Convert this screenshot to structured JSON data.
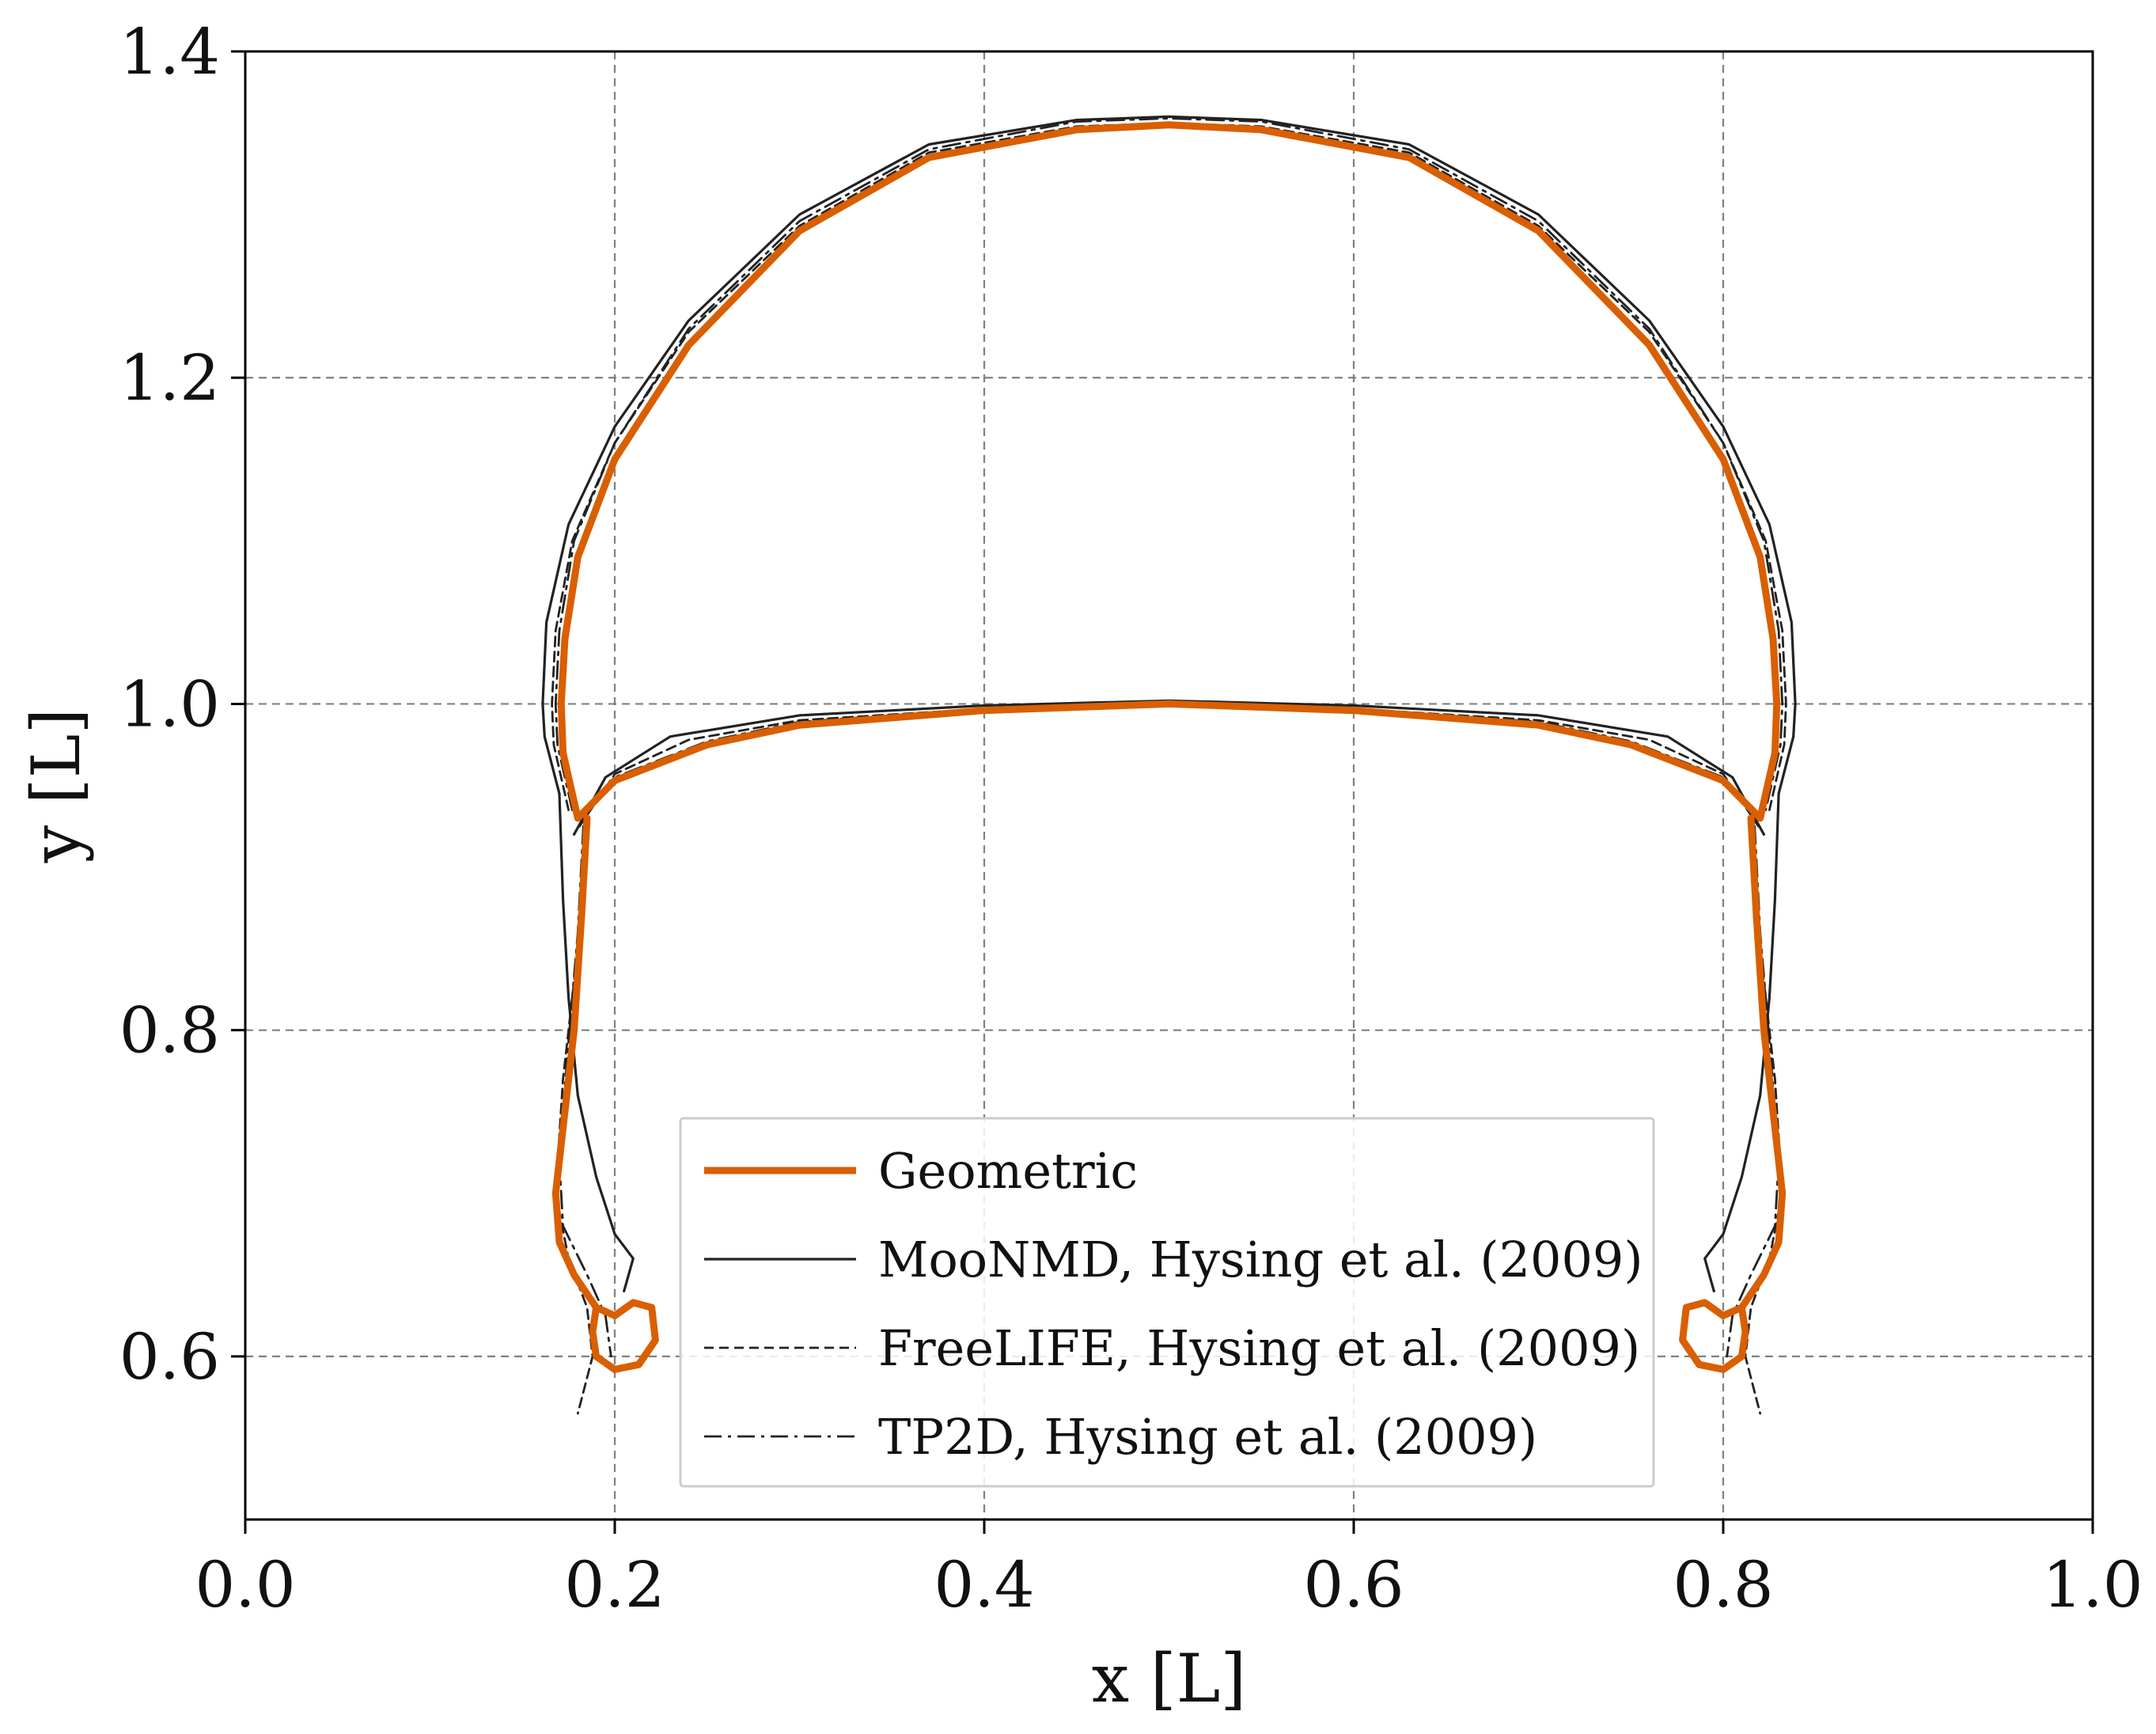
{
  "chart_data": {
    "type": "line",
    "title": "",
    "xlabel": "x [L]",
    "ylabel": "y [L]",
    "xlim": [
      0.0,
      1.0
    ],
    "ylim": [
      0.5,
      1.4
    ],
    "xticks": [
      0.0,
      0.2,
      0.4,
      0.6,
      0.8,
      1.0
    ],
    "xtick_labels": [
      "0.0",
      "0.2",
      "0.4",
      "0.6",
      "0.8",
      "1.0"
    ],
    "yticks": [
      0.6,
      0.8,
      1.0,
      1.2,
      1.4
    ],
    "ytick_labels": [
      "0.6",
      "0.8",
      "1.0",
      "1.2",
      "1.4"
    ],
    "grid": true,
    "legend_position": "lower-center",
    "series": [
      {
        "name": "Geometric",
        "color": "#d95f02",
        "style": "solid-thick",
        "outer": [
          [
            0.18,
            0.93
          ],
          [
            0.172,
            0.97
          ],
          [
            0.171,
            1.0
          ],
          [
            0.173,
            1.04
          ],
          [
            0.18,
            1.09
          ],
          [
            0.2,
            1.15
          ],
          [
            0.24,
            1.22
          ],
          [
            0.3,
            1.29
          ],
          [
            0.37,
            1.335
          ],
          [
            0.45,
            1.352
          ],
          [
            0.5,
            1.355
          ],
          [
            0.55,
            1.352
          ],
          [
            0.63,
            1.335
          ],
          [
            0.7,
            1.29
          ],
          [
            0.76,
            1.22
          ],
          [
            0.8,
            1.15
          ],
          [
            0.82,
            1.09
          ],
          [
            0.827,
            1.04
          ],
          [
            0.829,
            1.0
          ],
          [
            0.828,
            0.97
          ],
          [
            0.82,
            0.93
          ]
        ],
        "inner": [
          [
            0.18,
            0.93
          ],
          [
            0.2,
            0.953
          ],
          [
            0.25,
            0.975
          ],
          [
            0.3,
            0.987
          ],
          [
            0.4,
            0.996
          ],
          [
            0.5,
            1.0
          ],
          [
            0.6,
            0.996
          ],
          [
            0.7,
            0.987
          ],
          [
            0.75,
            0.975
          ],
          [
            0.8,
            0.953
          ],
          [
            0.82,
            0.93
          ]
        ],
        "left_tail": [
          [
            0.185,
            0.93
          ],
          [
            0.182,
            0.87
          ],
          [
            0.178,
            0.8
          ],
          [
            0.172,
            0.74
          ],
          [
            0.168,
            0.7
          ],
          [
            0.17,
            0.67
          ],
          [
            0.178,
            0.65
          ],
          [
            0.19,
            0.63
          ],
          [
            0.2,
            0.625
          ],
          [
            0.21,
            0.633
          ],
          [
            0.22,
            0.63
          ],
          [
            0.222,
            0.61
          ],
          [
            0.213,
            0.595
          ],
          [
            0.2,
            0.592
          ],
          [
            0.19,
            0.6
          ],
          [
            0.188,
            0.615
          ],
          [
            0.19,
            0.63
          ]
        ],
        "right_tail": [
          [
            0.815,
            0.93
          ],
          [
            0.818,
            0.87
          ],
          [
            0.822,
            0.8
          ],
          [
            0.828,
            0.74
          ],
          [
            0.832,
            0.7
          ],
          [
            0.83,
            0.67
          ],
          [
            0.822,
            0.65
          ],
          [
            0.81,
            0.63
          ],
          [
            0.8,
            0.625
          ],
          [
            0.79,
            0.633
          ],
          [
            0.78,
            0.63
          ],
          [
            0.778,
            0.61
          ],
          [
            0.787,
            0.595
          ],
          [
            0.8,
            0.592
          ],
          [
            0.81,
            0.6
          ],
          [
            0.812,
            0.615
          ],
          [
            0.81,
            0.63
          ]
        ]
      },
      {
        "name": "MooNMD, Hysing et al. (2009)",
        "color": "#222222",
        "style": "solid",
        "outer": [
          [
            0.17,
            0.945
          ],
          [
            0.162,
            0.98
          ],
          [
            0.161,
            1.0
          ],
          [
            0.163,
            1.05
          ],
          [
            0.175,
            1.11
          ],
          [
            0.2,
            1.17
          ],
          [
            0.24,
            1.235
          ],
          [
            0.3,
            1.3
          ],
          [
            0.37,
            1.343
          ],
          [
            0.45,
            1.358
          ],
          [
            0.5,
            1.36
          ],
          [
            0.55,
            1.358
          ],
          [
            0.63,
            1.343
          ],
          [
            0.7,
            1.3
          ],
          [
            0.76,
            1.235
          ],
          [
            0.8,
            1.17
          ],
          [
            0.825,
            1.11
          ],
          [
            0.837,
            1.05
          ],
          [
            0.839,
            1.0
          ],
          [
            0.838,
            0.98
          ],
          [
            0.83,
            0.945
          ]
        ],
        "inner": [
          [
            0.178,
            0.92
          ],
          [
            0.195,
            0.955
          ],
          [
            0.23,
            0.98
          ],
          [
            0.3,
            0.993
          ],
          [
            0.4,
            0.999
          ],
          [
            0.5,
            1.002
          ],
          [
            0.6,
            0.999
          ],
          [
            0.7,
            0.993
          ],
          [
            0.77,
            0.98
          ],
          [
            0.805,
            0.955
          ],
          [
            0.822,
            0.92
          ]
        ],
        "left_tail": [
          [
            0.17,
            0.945
          ],
          [
            0.172,
            0.88
          ],
          [
            0.175,
            0.82
          ],
          [
            0.18,
            0.76
          ],
          [
            0.19,
            0.71
          ],
          [
            0.2,
            0.675
          ],
          [
            0.21,
            0.66
          ],
          [
            0.205,
            0.64
          ]
        ],
        "right_tail": [
          [
            0.83,
            0.945
          ],
          [
            0.828,
            0.88
          ],
          [
            0.825,
            0.82
          ],
          [
            0.82,
            0.76
          ],
          [
            0.81,
            0.71
          ],
          [
            0.8,
            0.675
          ],
          [
            0.79,
            0.66
          ],
          [
            0.795,
            0.64
          ]
        ]
      },
      {
        "name": "FreeLIFE, Hysing et al. (2009)",
        "color": "#222222",
        "style": "dashed",
        "outer": [
          [
            0.175,
            0.935
          ],
          [
            0.167,
            0.975
          ],
          [
            0.166,
            1.0
          ],
          [
            0.168,
            1.045
          ],
          [
            0.177,
            1.1
          ],
          [
            0.2,
            1.16
          ],
          [
            0.24,
            1.228
          ],
          [
            0.3,
            1.293
          ],
          [
            0.37,
            1.338
          ],
          [
            0.45,
            1.354
          ],
          [
            0.5,
            1.356
          ],
          [
            0.55,
            1.354
          ],
          [
            0.63,
            1.338
          ],
          [
            0.7,
            1.293
          ],
          [
            0.76,
            1.228
          ],
          [
            0.8,
            1.16
          ],
          [
            0.823,
            1.1
          ],
          [
            0.832,
            1.045
          ],
          [
            0.834,
            1.0
          ],
          [
            0.833,
            0.975
          ],
          [
            0.825,
            0.935
          ]
        ],
        "inner": [
          [
            0.181,
            0.925
          ],
          [
            0.2,
            0.957
          ],
          [
            0.24,
            0.978
          ],
          [
            0.3,
            0.99
          ],
          [
            0.4,
            0.997
          ],
          [
            0.5,
            1.001
          ],
          [
            0.6,
            0.997
          ],
          [
            0.7,
            0.99
          ],
          [
            0.76,
            0.978
          ],
          [
            0.8,
            0.957
          ],
          [
            0.819,
            0.925
          ]
        ],
        "left_tail": [
          [
            0.185,
            0.92
          ],
          [
            0.18,
            0.85
          ],
          [
            0.172,
            0.77
          ],
          [
            0.168,
            0.7
          ],
          [
            0.175,
            0.66
          ],
          [
            0.185,
            0.63
          ],
          [
            0.188,
            0.6
          ],
          [
            0.18,
            0.565
          ]
        ],
        "right_tail": [
          [
            0.815,
            0.92
          ],
          [
            0.82,
            0.85
          ],
          [
            0.828,
            0.77
          ],
          [
            0.832,
            0.7
          ],
          [
            0.825,
            0.66
          ],
          [
            0.815,
            0.63
          ],
          [
            0.812,
            0.6
          ],
          [
            0.82,
            0.565
          ]
        ]
      },
      {
        "name": "TP2D, Hysing et al. (2009)",
        "color": "#222222",
        "style": "dashdot",
        "outer": [
          [
            0.177,
            0.935
          ],
          [
            0.169,
            0.975
          ],
          [
            0.168,
            1.0
          ],
          [
            0.17,
            1.045
          ],
          [
            0.178,
            1.1
          ],
          [
            0.2,
            1.16
          ],
          [
            0.24,
            1.23
          ],
          [
            0.3,
            1.296
          ],
          [
            0.37,
            1.34
          ],
          [
            0.45,
            1.357
          ],
          [
            0.5,
            1.359
          ],
          [
            0.55,
            1.357
          ],
          [
            0.63,
            1.34
          ],
          [
            0.7,
            1.296
          ],
          [
            0.76,
            1.23
          ],
          [
            0.8,
            1.16
          ],
          [
            0.822,
            1.1
          ],
          [
            0.83,
            1.045
          ],
          [
            0.832,
            1.0
          ],
          [
            0.831,
            0.975
          ],
          [
            0.823,
            0.935
          ]
        ],
        "inner": [
          [
            0.18,
            0.93
          ],
          [
            0.2,
            0.955
          ],
          [
            0.25,
            0.977
          ],
          [
            0.3,
            0.989
          ],
          [
            0.4,
            0.997
          ],
          [
            0.5,
            1.0
          ],
          [
            0.6,
            0.997
          ],
          [
            0.7,
            0.989
          ],
          [
            0.75,
            0.977
          ],
          [
            0.8,
            0.955
          ],
          [
            0.82,
            0.93
          ]
        ],
        "left_tail": [
          [
            0.183,
            0.925
          ],
          [
            0.18,
            0.86
          ],
          [
            0.174,
            0.78
          ],
          [
            0.17,
            0.72
          ],
          [
            0.172,
            0.68
          ],
          [
            0.185,
            0.65
          ],
          [
            0.195,
            0.625
          ],
          [
            0.198,
            0.6
          ]
        ],
        "right_tail": [
          [
            0.817,
            0.925
          ],
          [
            0.82,
            0.86
          ],
          [
            0.826,
            0.78
          ],
          [
            0.83,
            0.72
          ],
          [
            0.828,
            0.68
          ],
          [
            0.815,
            0.65
          ],
          [
            0.805,
            0.625
          ],
          [
            0.802,
            0.6
          ]
        ]
      }
    ]
  }
}
